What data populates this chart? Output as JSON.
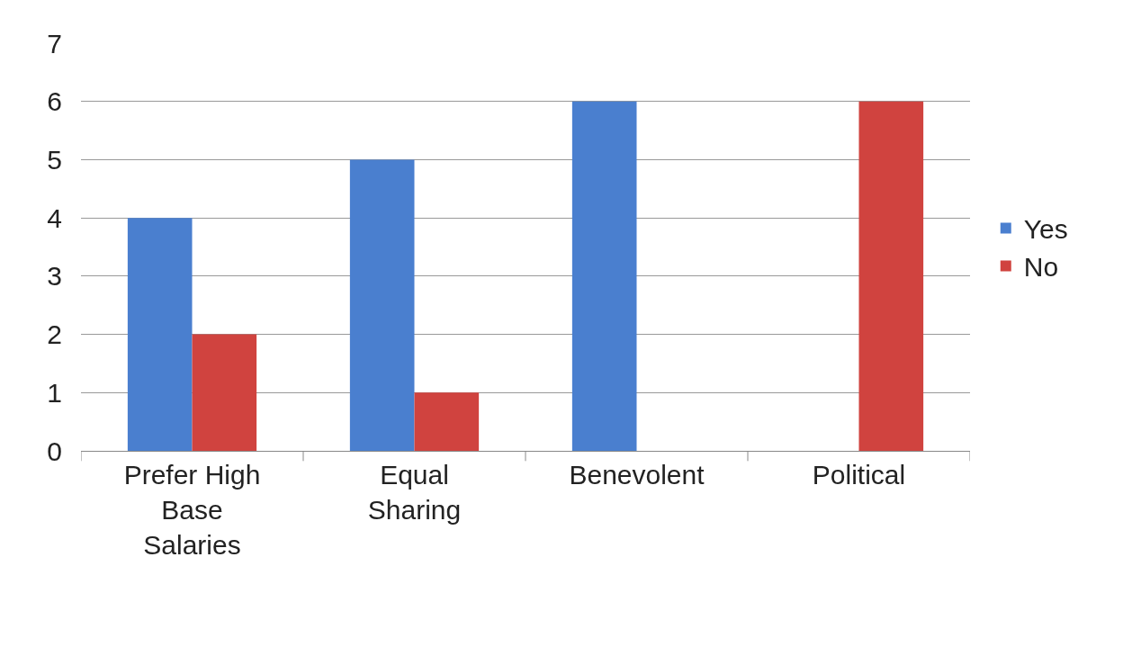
{
  "chart_data": {
    "type": "bar",
    "categories": [
      "Prefer High Base Salaries",
      "Equal Sharing",
      "Benevolent",
      "Political"
    ],
    "series": [
      {
        "name": "Yes",
        "color": "#4a7fcf",
        "values": [
          4,
          5,
          6,
          0
        ]
      },
      {
        "name": "No",
        "color": "#d0433f",
        "values": [
          2,
          1,
          0,
          6
        ]
      }
    ],
    "ylim": [
      0,
      7
    ],
    "yticks": [
      0,
      1,
      2,
      3,
      4,
      5,
      6,
      7
    ],
    "grid": "y",
    "legend": "right"
  }
}
